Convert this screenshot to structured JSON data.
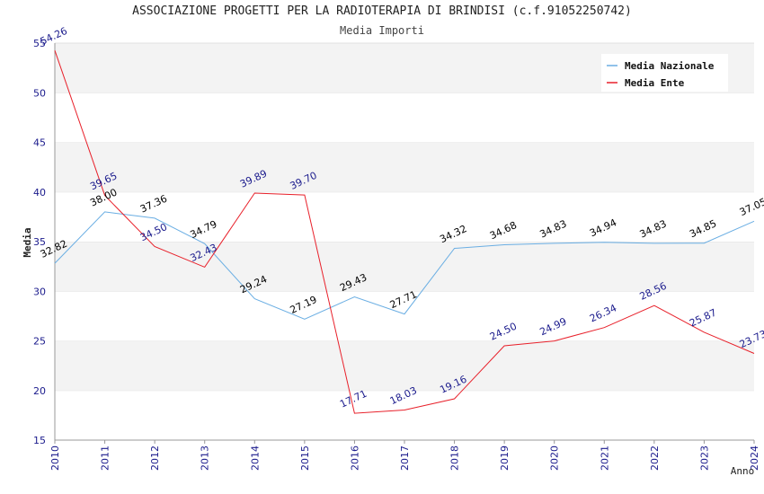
{
  "chart_data": {
    "type": "line",
    "title": "ASSOCIAZIONE PROGETTI PER LA RADIOTERAPIA DI BRINDISI (c.f.91052250742)",
    "subtitle": "Media Importi",
    "xlabel": "Anno",
    "ylabel": "Media",
    "ylim": [
      15,
      55
    ],
    "yticks": [
      15,
      20,
      25,
      30,
      35,
      40,
      45,
      50,
      55
    ],
    "grid": "horizontal bands",
    "legend_position": "top-right",
    "categories": [
      "2010",
      "2011",
      "2012",
      "2013",
      "2014",
      "2015",
      "2016",
      "2017",
      "2018",
      "2019",
      "2020",
      "2021",
      "2022",
      "2023",
      "2024"
    ],
    "series": [
      {
        "name": "Media Nazionale",
        "color": "#6aaee3",
        "label_color": "#000000",
        "values": [
          32.82,
          38.0,
          37.36,
          34.79,
          29.24,
          27.19,
          29.43,
          27.71,
          34.32,
          34.68,
          34.83,
          34.94,
          34.83,
          34.85,
          37.05
        ],
        "labels": [
          "32.82",
          "38.00",
          "37.36",
          "34.79",
          "29.24",
          "27.19",
          "29.43",
          "27.71",
          "34.32",
          "34.68",
          "34.83",
          "34.94",
          "34.83",
          "34.85",
          "37.05"
        ]
      },
      {
        "name": "Media Ente",
        "color": "#e8202a",
        "label_color": "#1a1a8c",
        "values": [
          54.26,
          39.65,
          34.5,
          32.43,
          39.89,
          39.7,
          17.71,
          18.03,
          19.16,
          24.5,
          24.99,
          26.34,
          28.56,
          25.87,
          23.73
        ],
        "labels": [
          "54.26",
          "39.65",
          "34.50",
          "32.43",
          "39.89",
          "39.70",
          "17.71",
          "18.03",
          "19.16",
          "24.50",
          "24.99",
          "26.34",
          "28.56",
          "25.87",
          "23.73"
        ]
      }
    ]
  }
}
